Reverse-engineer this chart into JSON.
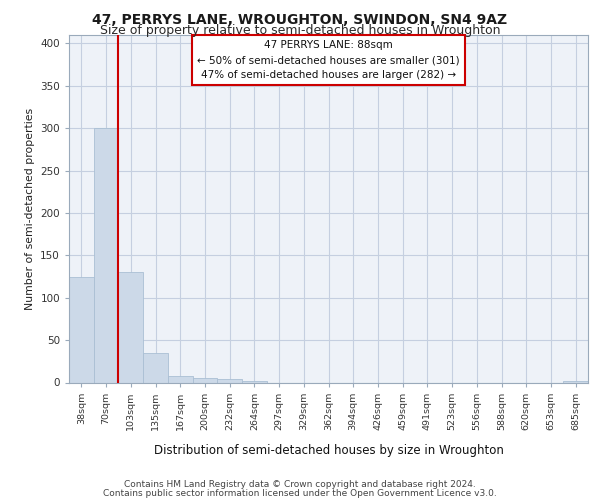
{
  "title1": "47, PERRYS LANE, WROUGHTON, SWINDON, SN4 9AZ",
  "title2": "Size of property relative to semi-detached houses in Wroughton",
  "xlabel": "Distribution of semi-detached houses by size in Wroughton",
  "ylabel": "Number of semi-detached properties",
  "categories": [
    "38sqm",
    "70sqm",
    "103sqm",
    "135sqm",
    "167sqm",
    "200sqm",
    "232sqm",
    "264sqm",
    "297sqm",
    "329sqm",
    "362sqm",
    "394sqm",
    "426sqm",
    "459sqm",
    "491sqm",
    "523sqm",
    "556sqm",
    "588sqm",
    "620sqm",
    "653sqm",
    "685sqm"
  ],
  "values": [
    125,
    300,
    130,
    35,
    8,
    5,
    4,
    2,
    0,
    0,
    0,
    0,
    0,
    0,
    0,
    0,
    0,
    0,
    0,
    0,
    2
  ],
  "bar_color": "#ccd9e8",
  "bar_edge_color": "#aabfd4",
  "ylim": [
    0,
    410
  ],
  "yticks": [
    0,
    50,
    100,
    150,
    200,
    250,
    300,
    350,
    400
  ],
  "vline_x": 1.5,
  "vline_color": "#cc0000",
  "annotation_title": "47 PERRYS LANE: 88sqm",
  "annotation_line1": "← 50% of semi-detached houses are smaller (301)",
  "annotation_line2": "47% of semi-detached houses are larger (282) →",
  "footer1": "Contains HM Land Registry data © Crown copyright and database right 2024.",
  "footer2": "Contains public sector information licensed under the Open Government Licence v3.0.",
  "bg_color": "#ffffff",
  "plot_bg_color": "#eef2f8",
  "grid_color": "#c5cfe0",
  "title1_fontsize": 10,
  "title2_fontsize": 9
}
